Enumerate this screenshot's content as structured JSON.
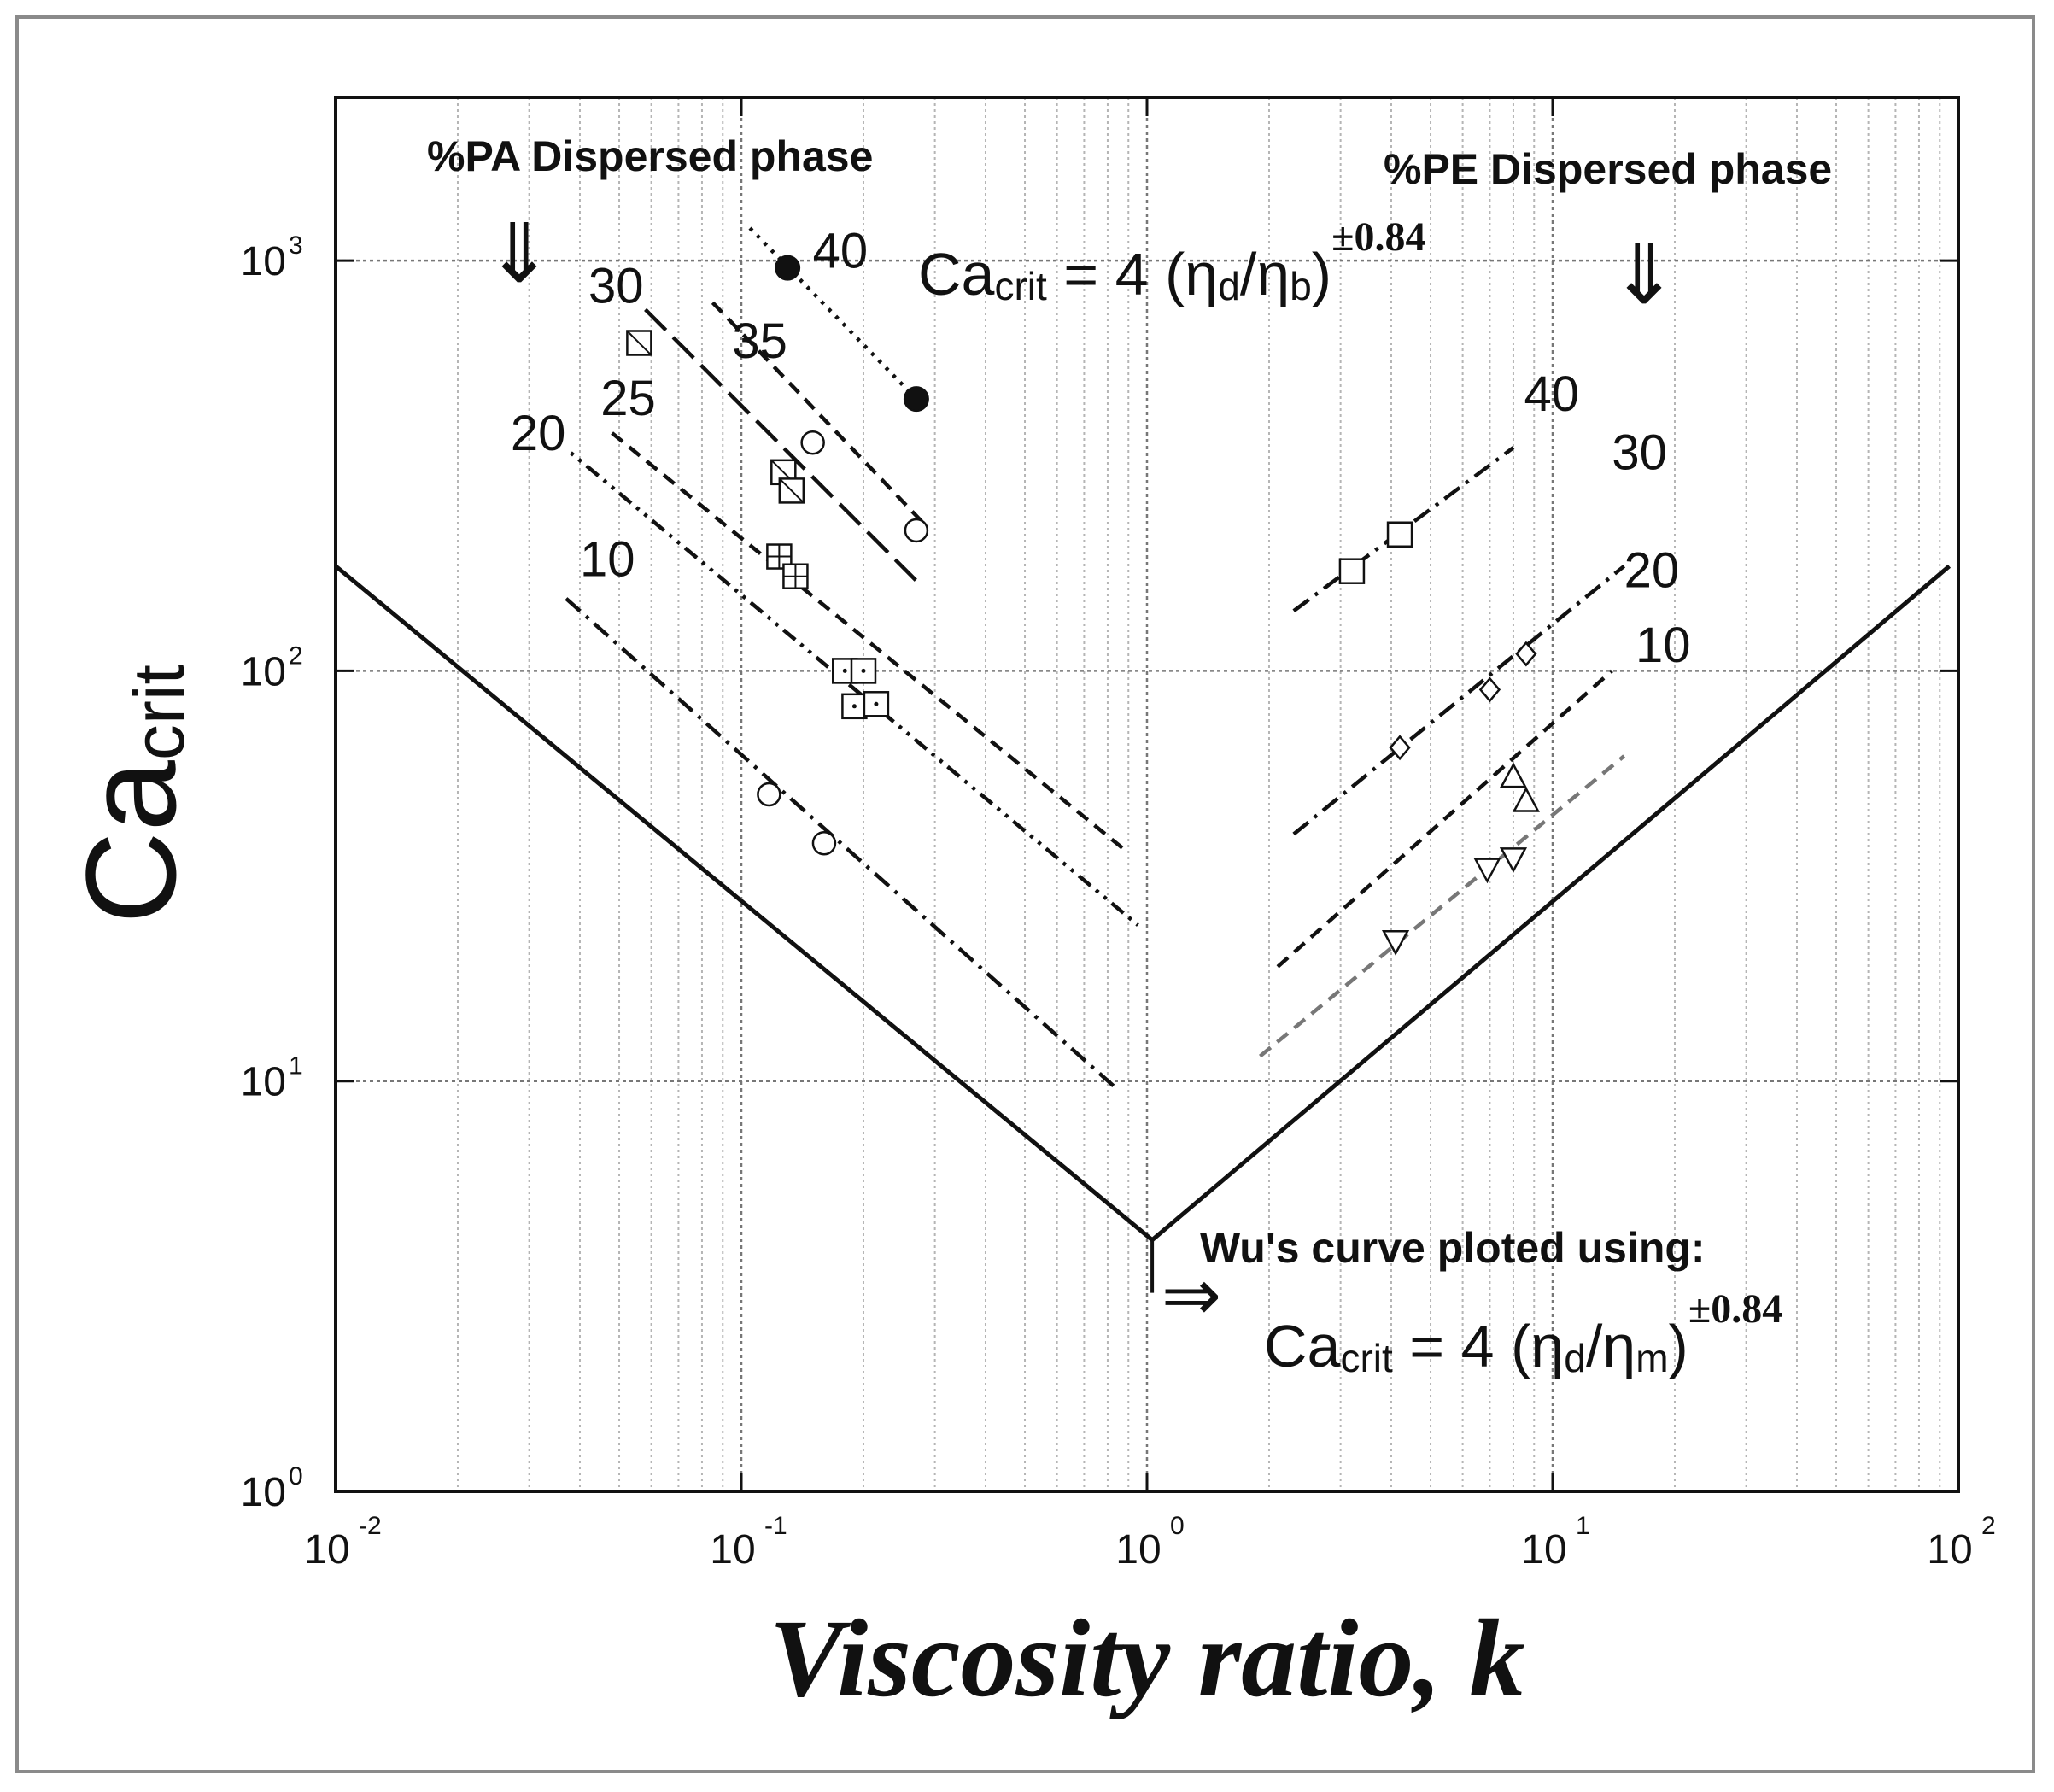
{
  "chart_data": {
    "type": "line",
    "scale": "log-log",
    "xlabel": "Viscosity ratio, k",
    "ylabel": {
      "main": "Ca",
      "sub": "crit"
    },
    "xlim": [
      0.01,
      100
    ],
    "ylim": [
      1,
      2500
    ],
    "x_ticks": [
      {
        "base": "10",
        "exp": "-2",
        "v": 0.01
      },
      {
        "base": "10",
        "exp": "-1",
        "v": 0.1
      },
      {
        "base": "10",
        "exp": "0",
        "v": 1
      },
      {
        "base": "10",
        "exp": "1",
        "v": 10
      },
      {
        "base": "10",
        "exp": "2",
        "v": 100
      }
    ],
    "y_ticks": [
      {
        "base": "10",
        "exp": "0",
        "v": 1
      },
      {
        "base": "10",
        "exp": "1",
        "v": 10
      },
      {
        "base": "10",
        "exp": "2",
        "v": 100
      },
      {
        "base": "10",
        "exp": "3",
        "v": 1000
      }
    ],
    "wu_curve": {
      "points": [
        [
          0.01,
          180
        ],
        [
          1.03,
          4.1
        ],
        [
          95,
          180
        ]
      ]
    },
    "annotations": {
      "pa_title": "%PA Dispersed phase",
      "pe_title": "%PE Dispersed phase",
      "pa_arrow": "⇓",
      "pe_arrow": "⇓",
      "eq_top": {
        "lead": "Ca",
        "sub1": "crit",
        "mid": " = 4 (η",
        "d": "d",
        "slash": "/η",
        "b": "b",
        "close": ")",
        "exp": "±0.84"
      },
      "wu_text": "Wu's curve ploted using:",
      "wu_arrow": "⇒",
      "eq_bottom": {
        "lead": "Ca",
        "sub1": "crit",
        "mid": " = 4 (η",
        "d": "d",
        "slash": "/η",
        "m": "m",
        "close": ")",
        "exp": "±0.84"
      }
    },
    "series": [
      {
        "group": "PA",
        "name": "10",
        "style": "dashdot",
        "color": "#111111",
        "line": [
          [
            0.037,
            150
          ],
          [
            0.85,
            9.5
          ]
        ],
        "marker": "circle",
        "points": [
          [
            0.117,
            50
          ],
          [
            0.16,
            38
          ]
        ],
        "label_pos": [
          0.04,
          170
        ]
      },
      {
        "group": "PA",
        "name": "20",
        "style": "dotdotdash",
        "color": "#111111",
        "line": [
          [
            0.038,
            340
          ],
          [
            0.95,
            24
          ]
        ],
        "marker": "square-dot",
        "points": [
          [
            0.18,
            100
          ],
          [
            0.2,
            100
          ],
          [
            0.19,
            82
          ],
          [
            0.215,
            83
          ]
        ],
        "label_pos": [
          0.027,
          345
        ]
      },
      {
        "group": "PA",
        "name": "25",
        "style": "dash",
        "color": "#111111",
        "line": [
          [
            0.048,
            380
          ],
          [
            0.9,
            36
          ]
        ],
        "marker": "square-plus",
        "points": [
          [
            0.124,
            190
          ],
          [
            0.136,
            170
          ]
        ],
        "label_pos": [
          0.045,
          420
        ]
      },
      {
        "group": "PA",
        "name": "30",
        "style": "longdash",
        "color": "#111111",
        "line": [
          [
            0.058,
            760
          ],
          [
            0.28,
            160
          ]
        ],
        "marker": "square-slash",
        "points": [
          [
            0.056,
            630
          ],
          [
            0.127,
            305
          ],
          [
            0.133,
            275
          ]
        ],
        "label_pos": [
          0.042,
          790
        ]
      },
      {
        "group": "PA",
        "name": "35",
        "style": "dash",
        "color": "#111111",
        "line": [
          [
            0.085,
            790
          ],
          [
            0.28,
            230
          ]
        ],
        "marker": "circle",
        "points": [
          [
            0.15,
            360
          ],
          [
            0.27,
            220
          ]
        ],
        "label_pos": [
          0.095,
          580
        ]
      },
      {
        "group": "PA",
        "name": "40",
        "style": "dot",
        "color": "#111111",
        "line": [
          [
            0.105,
            1200
          ],
          [
            0.27,
            460
          ]
        ],
        "marker": "filled-circle",
        "points": [
          [
            0.13,
            960
          ],
          [
            0.27,
            460
          ]
        ],
        "label_pos": [
          0.15,
          960
        ]
      },
      {
        "group": "PE",
        "name": "40",
        "style": "dashdot",
        "color": "#111111",
        "line": [
          [
            2.3,
            140
          ],
          [
            8.0,
            350
          ]
        ],
        "marker": "square",
        "points": [
          [
            3.2,
            175
          ],
          [
            4.2,
            215
          ]
        ],
        "label_pos": [
          8.5,
          430
        ]
      },
      {
        "group": "PE",
        "name": "30",
        "style": "dashdot",
        "color": "#111111",
        "line": [
          [
            2.3,
            40
          ],
          [
            15,
            180
          ]
        ],
        "marker": "diamond",
        "points": [
          [
            4.2,
            65
          ],
          [
            7.0,
            90
          ],
          [
            8.6,
            110
          ]
        ],
        "label_pos": [
          14,
          310
        ]
      },
      {
        "group": "PE",
        "name": "20",
        "style": "dash",
        "color": "#111111",
        "line": [
          [
            2.1,
            19
          ],
          [
            14,
            100
          ]
        ],
        "marker": "triangle-up",
        "points": [
          [
            8.0,
            55
          ],
          [
            8.6,
            48
          ]
        ],
        "label_pos": [
          15,
          160
        ]
      },
      {
        "group": "PE",
        "name": "10",
        "style": "dash",
        "color": "#777777",
        "line": [
          [
            1.9,
            11.5
          ],
          [
            15,
            62
          ]
        ],
        "marker": "triangle-down",
        "points": [
          [
            4.1,
            22
          ],
          [
            6.9,
            33
          ],
          [
            8.0,
            35
          ]
        ],
        "label_pos": [
          16,
          105
        ]
      }
    ]
  }
}
